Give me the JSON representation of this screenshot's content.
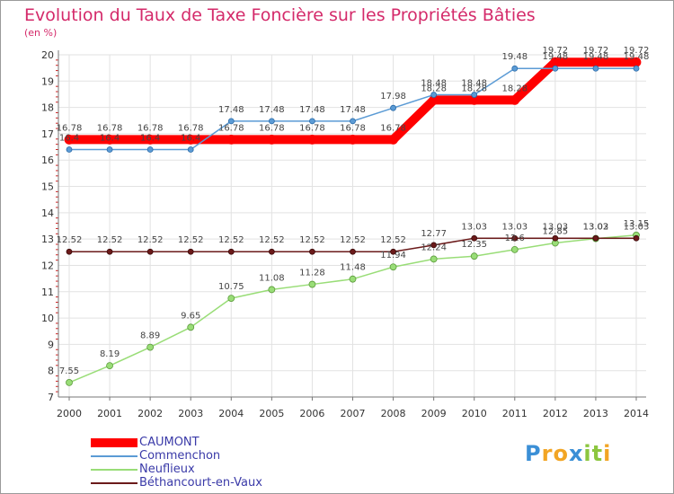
{
  "chart_data": {
    "type": "line",
    "title": "Evolution du Taux de Taxe Foncière sur les Propriétés Bâties",
    "ylabel": "(en %)",
    "xlabel": "",
    "categories": [
      "2000",
      "2001",
      "2002",
      "2003",
      "2004",
      "2005",
      "2006",
      "2007",
      "2008",
      "2009",
      "2010",
      "2011",
      "2012",
      "2013",
      "2014"
    ],
    "ylim": [
      7,
      20
    ],
    "yticks": [
      7,
      8,
      9,
      10,
      11,
      12,
      13,
      14,
      15,
      16,
      17,
      18,
      19,
      20
    ],
    "grid": true,
    "legend_position": "bottom-left",
    "series": [
      {
        "name": "CAUMONT",
        "color": "#ff0000",
        "values": [
          16.78,
          16.78,
          16.78,
          16.78,
          16.78,
          16.78,
          16.78,
          16.78,
          16.78,
          18.28,
          18.28,
          18.28,
          19.72,
          19.72,
          19.72
        ],
        "labels": [
          "16.78",
          "16.78",
          "16.78",
          "16.78",
          "16.78",
          "16.78",
          "16.78",
          "16.78",
          "16.78",
          "18.28",
          "18.28",
          "18.28",
          "19.72",
          "19.72",
          "19.72"
        ]
      },
      {
        "name": "Commenchon",
        "color": "#5b9bd5",
        "values": [
          16.4,
          16.4,
          16.4,
          16.4,
          17.48,
          17.48,
          17.48,
          17.48,
          17.98,
          18.48,
          18.48,
          19.48,
          19.48,
          19.48,
          19.48
        ],
        "labels": [
          "16.4",
          "16.4",
          "16.4",
          "16.4",
          "17.48",
          "17.48",
          "17.48",
          "17.48",
          "17.98",
          "18.48",
          "18.48",
          "19.48",
          "19.48",
          "19.48",
          "19.48"
        ]
      },
      {
        "name": "Neuflieux",
        "color": "#99dd77",
        "values": [
          7.55,
          8.19,
          8.89,
          9.65,
          10.75,
          11.08,
          11.28,
          11.48,
          11.94,
          12.24,
          12.35,
          12.6,
          12.85,
          13.02,
          13.15
        ],
        "labels": [
          "7.55",
          "8.19",
          "8.89",
          "9.65",
          "10.75",
          "11.08",
          "11.28",
          "11.48",
          "11.94",
          "12.24",
          "12.35",
          "12.6",
          "12.85",
          "13.02",
          "13.15"
        ]
      },
      {
        "name": "Béthancourt-en-Vaux",
        "color": "#6b1a1a",
        "values": [
          12.52,
          12.52,
          12.52,
          12.52,
          12.52,
          12.52,
          12.52,
          12.52,
          12.52,
          12.77,
          13.03,
          13.03,
          13.03,
          13.03,
          13.03
        ],
        "labels": [
          "12.52",
          "12.52",
          "12.52",
          "12.52",
          "12.52",
          "12.52",
          "12.52",
          "12.52",
          "12.52",
          "12.77",
          "13.03",
          "13.03",
          "13.03",
          "13.03",
          "13.03"
        ]
      }
    ]
  },
  "logo": {
    "letters": [
      "P",
      "r",
      "o",
      "x",
      "i",
      "t",
      "i"
    ],
    "colors": [
      "#3b8fd6",
      "#f2a524",
      "#f2a524",
      "#3b8fd6",
      "#8cc63f",
      "#8cc63f",
      "#f2a524"
    ]
  }
}
